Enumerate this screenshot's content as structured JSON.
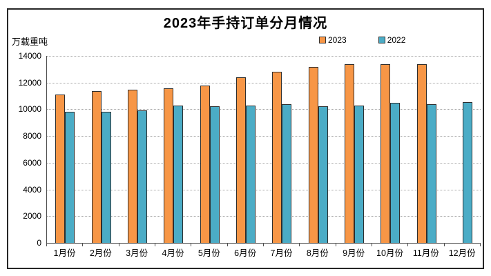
{
  "window": {
    "background": "#ffffff",
    "frame_border_color": "#262626"
  },
  "title": "2023年手持订单分月情况",
  "unit_label": "万载重吨",
  "chart_data": {
    "type": "bar",
    "title": "2023年手持订单分月情况",
    "ylabel": "万载重吨",
    "categories": [
      "1月份",
      "2月份",
      "3月份",
      "4月份",
      "5月份",
      "6月份",
      "7月份",
      "8月份",
      "9月份",
      "10月份",
      "11月份",
      "12月份"
    ],
    "series": [
      {
        "name": "2023",
        "color": "#F79646",
        "values": [
          11100,
          11350,
          11450,
          11550,
          11800,
          12400,
          12800,
          13150,
          13400,
          13400,
          13400,
          null
        ]
      },
      {
        "name": "2022",
        "color": "#4BACC6",
        "values": [
          9800,
          9800,
          9900,
          10300,
          10250,
          10300,
          10400,
          10250,
          10300,
          10500,
          10400,
          10550
        ]
      }
    ],
    "ylim": [
      0,
      14000
    ],
    "yticks": [
      0,
      2000,
      4000,
      6000,
      8000,
      10000,
      12000,
      14000
    ],
    "grid": "horizontal-dotted",
    "gridline_color": "#a6a6a6",
    "axis_color": "#4d4d4d",
    "bar_border_color": "#2e2e2e",
    "legend_position": "top"
  }
}
